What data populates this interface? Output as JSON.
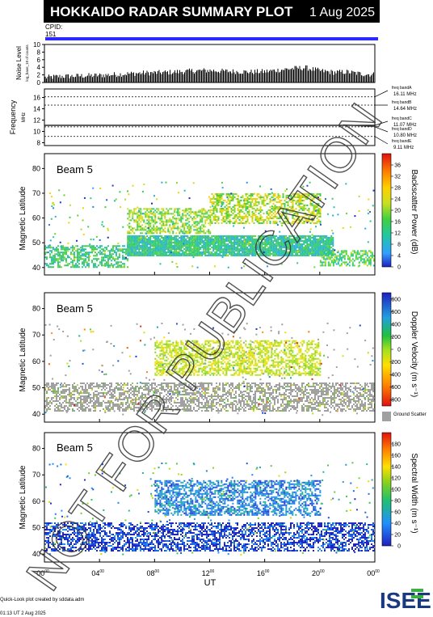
{
  "header": {
    "title": "HOKKAIDO RADAR SUMMARY PLOT",
    "date": "1 Aug 2025",
    "cpid_label": "CPID:",
    "cpid_value": "151"
  },
  "colors": {
    "header_bg": "#000000",
    "cpid_bar": "#2a2aff",
    "ground_scatter": "#a0a0a0"
  },
  "chart_data": [
    {
      "type": "area",
      "panel": "noise",
      "ylabel": "Noise Level",
      "ylabel_sub": "log_base_10 of counts",
      "ylim": [
        0,
        10
      ],
      "yticks": [
        0,
        2,
        4,
        6,
        8,
        10
      ],
      "x_hours": [
        0,
        1,
        2,
        3,
        4,
        5,
        6,
        7,
        8,
        9,
        10,
        11,
        12,
        13,
        14,
        15,
        16,
        17,
        18,
        19,
        20,
        21,
        22,
        23,
        24
      ],
      "values": [
        1.0,
        1.3,
        1.4,
        1.5,
        1.6,
        1.8,
        2.0,
        2.2,
        2.3,
        2.4,
        2.6,
        2.8,
        2.9,
        2.7,
        2.6,
        2.5,
        2.6,
        3.0,
        3.4,
        3.6,
        2.8,
        2.4,
        2.5,
        2.0,
        1.8
      ]
    },
    {
      "type": "line",
      "panel": "frequency",
      "ylabel": "Frequency",
      "ylabel_sub": "MHz",
      "ylim": [
        7.5,
        17.5
      ],
      "yticks": [
        8,
        10,
        12,
        14,
        16
      ],
      "bands": [
        {
          "name": "freq bandA",
          "value": 16.11,
          "label": "16.11 MHz"
        },
        {
          "name": "freq bandB",
          "value": 14.64,
          "label": "14.64 MHz"
        },
        {
          "name": "freq bandC",
          "value": 11.07,
          "label": "11.07 MHz"
        },
        {
          "name": "freq bandD",
          "value": 10.8,
          "label": "10.80 MHz"
        },
        {
          "name": "freq bandE",
          "value": 9.11,
          "label": "9.11 MHz"
        }
      ]
    },
    {
      "type": "heatmap",
      "panel": "power",
      "beam_label": "Beam 5",
      "ylabel": "Magnetic Latitude",
      "ylim": [
        37,
        86
      ],
      "yticks": [
        40,
        50,
        60,
        70,
        80
      ],
      "colorbar_label": "Backscatter Power (dB)",
      "colorbar_ticks": [
        0,
        4,
        8,
        12,
        16,
        20,
        24,
        28,
        32,
        36
      ],
      "colorbar_range": [
        0,
        40
      ],
      "regions": [
        {
          "lat": [
            40,
            49
          ],
          "hours": [
            0,
            6
          ],
          "value": 14
        },
        {
          "lat": [
            45,
            53
          ],
          "hours": [
            6,
            21
          ],
          "value": 12
        },
        {
          "lat": [
            41,
            47
          ],
          "hours": [
            20,
            24
          ],
          "value": 16
        },
        {
          "lat": [
            54,
            64
          ],
          "hours": [
            6,
            12
          ],
          "value": 20
        },
        {
          "lat": [
            58,
            70
          ],
          "hours": [
            12,
            20
          ],
          "value": 22
        }
      ]
    },
    {
      "type": "heatmap",
      "panel": "velocity",
      "beam_label": "Beam 5",
      "ylabel": "Magnetic Latitude",
      "ylim": [
        37,
        86
      ],
      "yticks": [
        40,
        50,
        60,
        70,
        80
      ],
      "colorbar_label": "Doppler Velocity (m s⁻¹)",
      "colorbar_ticks": [
        800,
        600,
        400,
        200,
        0,
        -200,
        -400,
        -600,
        -800
      ],
      "colorbar_range": [
        -1000,
        1000
      ],
      "ground_scatter_label": "Ground Scatter",
      "regions": [
        {
          "lat": [
            41,
            52
          ],
          "hours": [
            0,
            24
          ],
          "value": "ground"
        },
        {
          "lat": [
            55,
            68
          ],
          "hours": [
            8,
            20
          ],
          "value": -100
        }
      ]
    },
    {
      "type": "heatmap",
      "panel": "width",
      "beam_label": "Beam 5",
      "ylabel": "Magnetic Latitude",
      "ylim": [
        37,
        86
      ],
      "yticks": [
        40,
        50,
        60,
        70,
        80
      ],
      "colorbar_label": "Spectral Width (m s⁻¹)",
      "colorbar_ticks": [
        0,
        20,
        40,
        60,
        80,
        100,
        120,
        140,
        160,
        180
      ],
      "colorbar_range": [
        0,
        200
      ],
      "regions": [
        {
          "lat": [
            41,
            52
          ],
          "hours": [
            0,
            24
          ],
          "value": 10
        },
        {
          "lat": [
            55,
            68
          ],
          "hours": [
            8,
            20
          ],
          "value": 40
        }
      ]
    }
  ],
  "xaxis": {
    "label": "UT",
    "ticks": [
      "00",
      "04",
      "08",
      "12",
      "16",
      "20",
      "00"
    ],
    "tick_sup": "00"
  },
  "watermark": "NOT FOR PUBLICATION",
  "footer": {
    "credit": "Quick-Look plot created by sddata.adm",
    "timestamp": "01:13 UT  2 Aug 2025",
    "logo_text": "ISEE"
  }
}
